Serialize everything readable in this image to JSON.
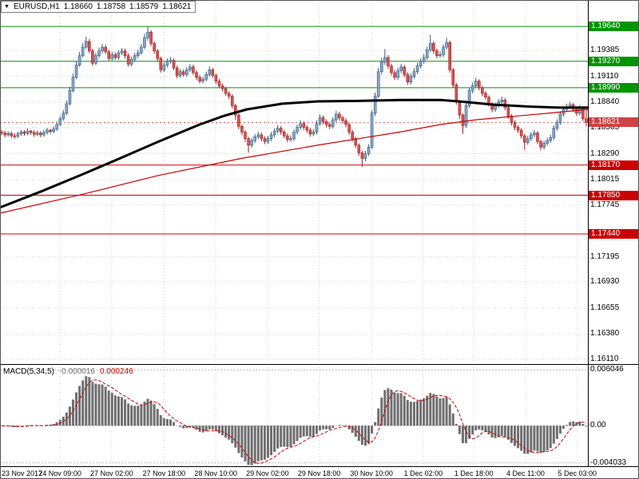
{
  "title": {
    "symbol_period": "EURUSD,H1",
    "open": "1.18660",
    "high": "1.18758",
    "low": "1.18579",
    "close": "1.18621"
  },
  "colors": {
    "bull_fill": "#89a8c6",
    "bull_border": "#355a7d",
    "bear_fill": "#d95252",
    "bear_border": "#9e2424",
    "ma_slow": "#000000",
    "ma_fast": "#cc0000",
    "resistance": "#009500",
    "support": "#cc0000",
    "current_price_line": "#e06666",
    "current_price_box": "#cc4444",
    "grid": "#cdcdcd",
    "histogram": "#6f6f6f",
    "signal": "#cc0000",
    "axis_text": "#000000",
    "separator": "#000000"
  },
  "price_axis": {
    "ticks": [
      "1.19385",
      "1.19110",
      "1.18840",
      "1.18565",
      "1.18290",
      "1.18015",
      "1.17745",
      "1.17195",
      "1.16930",
      "1.16655",
      "1.16380",
      "1.16110"
    ]
  },
  "time_axis": {
    "labels": [
      {
        "text": "23 Nov 2017",
        "pos": 0.003,
        "align": "left"
      },
      {
        "text": "24 Nov 09:00",
        "pos": 0.102
      },
      {
        "text": "27 Nov 02:00",
        "pos": 0.19
      },
      {
        "text": "27 Nov 18:00",
        "pos": 0.279
      },
      {
        "text": "28 Nov 10:00",
        "pos": 0.367
      },
      {
        "text": "29 Nov 02:00",
        "pos": 0.455
      },
      {
        "text": "29 Nov 18:00",
        "pos": 0.543
      },
      {
        "text": "30 Nov 10:00",
        "pos": 0.632
      },
      {
        "text": "1 Dec 02:00",
        "pos": 0.72
      },
      {
        "text": "1 Dec 18:00",
        "pos": 0.806
      },
      {
        "text": "4 Dec 11:00",
        "pos": 0.894
      },
      {
        "text": "5 Dec 03:00",
        "pos": 0.982
      }
    ]
  },
  "chart_data": {
    "type": "candlestick",
    "title": "EURUSD,H1",
    "price_range": {
      "min": 1.1606,
      "max": 1.1992
    },
    "levels": {
      "resistance": [
        {
          "price": 1.1964,
          "label": "1.19640"
        },
        {
          "price": 1.1927,
          "label": "1.19270"
        },
        {
          "price": 1.1899,
          "label": "1.18990"
        }
      ],
      "support": [
        {
          "price": 1.1817,
          "label": "1.18170"
        },
        {
          "price": 1.1785,
          "label": "1.17850"
        },
        {
          "price": 1.1744,
          "label": "1.17440"
        }
      ]
    },
    "current_price": {
      "price": 1.18621,
      "label": "1.18621"
    },
    "candles": [
      [
        1.1852,
        1.18545,
        1.18485,
        1.1851
      ],
      [
        1.1851,
        1.18535,
        1.18465,
        1.1849
      ],
      [
        1.1849,
        1.1853,
        1.1847,
        1.18505
      ],
      [
        1.18505,
        1.18525,
        1.18455,
        1.1848
      ],
      [
        1.1848,
        1.1851,
        1.1845,
        1.18475
      ],
      [
        1.18475,
        1.18525,
        1.18455,
        1.185
      ],
      [
        1.185,
        1.18545,
        1.1848,
        1.1852
      ],
      [
        1.1852,
        1.1854,
        1.1848,
        1.18505
      ],
      [
        1.18505,
        1.1856,
        1.18485,
        1.1853
      ],
      [
        1.1853,
        1.18545,
        1.1849,
        1.18515
      ],
      [
        1.18515,
        1.1854,
        1.1847,
        1.18495
      ],
      [
        1.18495,
        1.18535,
        1.18475,
        1.1851
      ],
      [
        1.1851,
        1.1853,
        1.18465,
        1.1849
      ],
      [
        1.1849,
        1.18545,
        1.1847,
        1.18515
      ],
      [
        1.18515,
        1.18565,
        1.18495,
        1.1854
      ],
      [
        1.1854,
        1.18555,
        1.185,
        1.18525
      ],
      [
        1.18525,
        1.1858,
        1.18505,
        1.1855
      ],
      [
        1.1855,
        1.1863,
        1.1853,
        1.186
      ],
      [
        1.186,
        1.1869,
        1.1858,
        1.1866
      ],
      [
        1.1866,
        1.18755,
        1.1864,
        1.1872
      ],
      [
        1.1872,
        1.18855,
        1.187,
        1.1882
      ],
      [
        1.1882,
        1.19,
        1.188,
        1.1896
      ],
      [
        1.1896,
        1.1914,
        1.1894,
        1.191
      ],
      [
        1.191,
        1.1927,
        1.1908,
        1.1923
      ],
      [
        1.1923,
        1.1937,
        1.1921,
        1.1933
      ],
      [
        1.1933,
        1.19465,
        1.1931,
        1.1942
      ],
      [
        1.1942,
        1.1953,
        1.194,
        1.1948
      ],
      [
        1.1948,
        1.19505,
        1.19355,
        1.1938
      ],
      [
        1.1938,
        1.19405,
        1.1922,
        1.1925
      ],
      [
        1.1925,
        1.1936,
        1.1923,
        1.1933
      ],
      [
        1.1933,
        1.19415,
        1.19305,
        1.1938
      ],
      [
        1.1938,
        1.19455,
        1.19355,
        1.1942
      ],
      [
        1.1942,
        1.19445,
        1.19345,
        1.1937
      ],
      [
        1.1937,
        1.19395,
        1.19275,
        1.193
      ],
      [
        1.193,
        1.1937,
        1.19275,
        1.1934
      ],
      [
        1.1934,
        1.19365,
        1.19285,
        1.1931
      ],
      [
        1.1931,
        1.1939,
        1.19285,
        1.1936
      ],
      [
        1.1936,
        1.1941,
        1.19335,
        1.1938
      ],
      [
        1.1938,
        1.19405,
        1.193,
        1.1933
      ],
      [
        1.1933,
        1.19355,
        1.19215,
        1.1924
      ],
      [
        1.1924,
        1.1932,
        1.19215,
        1.1929
      ],
      [
        1.1929,
        1.1936,
        1.19265,
        1.1933
      ],
      [
        1.1933,
        1.19395,
        1.19305,
        1.1936
      ],
      [
        1.1936,
        1.19455,
        1.1934,
        1.1942
      ],
      [
        1.1942,
        1.1956,
        1.194,
        1.1952
      ],
      [
        1.1952,
        1.1964,
        1.1949,
        1.1958
      ],
      [
        1.1958,
        1.196,
        1.1943,
        1.1946
      ],
      [
        1.1946,
        1.1948,
        1.1935,
        1.1938
      ],
      [
        1.1938,
        1.194,
        1.1927,
        1.193
      ],
      [
        1.193,
        1.1932,
        1.1915,
        1.1918
      ],
      [
        1.1918,
        1.1926,
        1.19155,
        1.1923
      ],
      [
        1.1923,
        1.193,
        1.19205,
        1.1927
      ],
      [
        1.1927,
        1.19315,
        1.19245,
        1.1928
      ],
      [
        1.1928,
        1.193,
        1.19175,
        1.192
      ],
      [
        1.192,
        1.19225,
        1.1909,
        1.1912
      ],
      [
        1.1912,
        1.1919,
        1.19095,
        1.1916
      ],
      [
        1.1916,
        1.19185,
        1.19105,
        1.1913
      ],
      [
        1.1913,
        1.1921,
        1.19105,
        1.1918
      ],
      [
        1.1918,
        1.1924,
        1.19155,
        1.1921
      ],
      [
        1.1921,
        1.19235,
        1.19125,
        1.1915
      ],
      [
        1.1915,
        1.19175,
        1.1907,
        1.191
      ],
      [
        1.191,
        1.19125,
        1.19035,
        1.1906
      ],
      [
        1.1906,
        1.1911,
        1.19035,
        1.1908
      ],
      [
        1.1908,
        1.1916,
        1.19055,
        1.1913
      ],
      [
        1.1913,
        1.19215,
        1.19105,
        1.1918
      ],
      [
        1.1918,
        1.192,
        1.19095,
        1.1912
      ],
      [
        1.1912,
        1.1914,
        1.1903,
        1.1906
      ],
      [
        1.1906,
        1.19085,
        1.18985,
        1.1901
      ],
      [
        1.1901,
        1.19035,
        1.1895,
        1.1898
      ],
      [
        1.1898,
        1.19,
        1.18905,
        1.1893
      ],
      [
        1.1893,
        1.18955,
        1.1887,
        1.189
      ],
      [
        1.189,
        1.1892,
        1.1877,
        1.188
      ],
      [
        1.188,
        1.1882,
        1.1865,
        1.187
      ],
      [
        1.187,
        1.1872,
        1.1855,
        1.1858
      ],
      [
        1.1858,
        1.186,
        1.18485,
        1.1852
      ],
      [
        1.1852,
        1.1854,
        1.18415,
        1.1845
      ],
      [
        1.1845,
        1.1847,
        1.183,
        1.1838
      ],
      [
        1.1838,
        1.1846,
        1.18355,
        1.1843
      ],
      [
        1.1843,
        1.185,
        1.18405,
        1.1847
      ],
      [
        1.1847,
        1.18525,
        1.18445,
        1.1849
      ],
      [
        1.1849,
        1.18515,
        1.1842,
        1.1845
      ],
      [
        1.1845,
        1.18475,
        1.1839,
        1.1842
      ],
      [
        1.1842,
        1.1848,
        1.18395,
        1.1845
      ],
      [
        1.1845,
        1.1852,
        1.18425,
        1.1849
      ],
      [
        1.1849,
        1.1856,
        1.18465,
        1.1853
      ],
      [
        1.1853,
        1.18595,
        1.18505,
        1.1856
      ],
      [
        1.1856,
        1.18585,
        1.1849,
        1.1852
      ],
      [
        1.1852,
        1.18545,
        1.18455,
        1.1848
      ],
      [
        1.1848,
        1.18505,
        1.1841,
        1.1844
      ],
      [
        1.1844,
        1.18485,
        1.18415,
        1.1845
      ],
      [
        1.1845,
        1.1855,
        1.18425,
        1.1852
      ],
      [
        1.1852,
        1.186,
        1.18495,
        1.1857
      ],
      [
        1.1857,
        1.18645,
        1.18545,
        1.1861
      ],
      [
        1.1861,
        1.18635,
        1.1854,
        1.1857
      ],
      [
        1.1857,
        1.18595,
        1.1851,
        1.1854
      ],
      [
        1.1854,
        1.18565,
        1.1847,
        1.185
      ],
      [
        1.185,
        1.1855,
        1.18475,
        1.1852
      ],
      [
        1.1852,
        1.18645,
        1.18495,
        1.1861
      ],
      [
        1.1861,
        1.18705,
        1.18585,
        1.1867
      ],
      [
        1.1867,
        1.18695,
        1.186,
        1.1863
      ],
      [
        1.1863,
        1.18655,
        1.1857,
        1.186
      ],
      [
        1.186,
        1.18625,
        1.1855,
        1.1858
      ],
      [
        1.1858,
        1.1868,
        1.18555,
        1.1865
      ],
      [
        1.1865,
        1.18745,
        1.18625,
        1.1871
      ],
      [
        1.1871,
        1.18735,
        1.1864,
        1.1867
      ],
      [
        1.1867,
        1.18695,
        1.1861,
        1.1864
      ],
      [
        1.1864,
        1.18665,
        1.1857,
        1.186
      ],
      [
        1.186,
        1.1862,
        1.1849,
        1.1852
      ],
      [
        1.1852,
        1.1854,
        1.1842,
        1.1845
      ],
      [
        1.1845,
        1.1847,
        1.1835,
        1.1838
      ],
      [
        1.1838,
        1.184,
        1.1827,
        1.183
      ],
      [
        1.183,
        1.1832,
        1.1815,
        1.1824
      ],
      [
        1.1824,
        1.1832,
        1.1821,
        1.1829
      ],
      [
        1.1829,
        1.1839,
        1.18265,
        1.1836
      ],
      [
        1.1836,
        1.1875,
        1.1834,
        1.1872
      ],
      [
        1.1872,
        1.1894,
        1.1869,
        1.189
      ],
      [
        1.189,
        1.192,
        1.1888,
        1.1916
      ],
      [
        1.1916,
        1.1931,
        1.1913,
        1.1926
      ],
      [
        1.1926,
        1.194,
        1.1923,
        1.1931
      ],
      [
        1.1931,
        1.19335,
        1.1919,
        1.1922
      ],
      [
        1.1922,
        1.19245,
        1.1912,
        1.1915
      ],
      [
        1.1915,
        1.19175,
        1.1907,
        1.191
      ],
      [
        1.191,
        1.192,
        1.19075,
        1.1917
      ],
      [
        1.1917,
        1.19245,
        1.19145,
        1.1921
      ],
      [
        1.1921,
        1.1923,
        1.191,
        1.1913
      ],
      [
        1.1913,
        1.19155,
        1.1902,
        1.1905
      ],
      [
        1.1905,
        1.1914,
        1.19025,
        1.1911
      ],
      [
        1.1911,
        1.19195,
        1.19085,
        1.1916
      ],
      [
        1.1916,
        1.19255,
        1.19135,
        1.1922
      ],
      [
        1.1922,
        1.193,
        1.19195,
        1.1927
      ],
      [
        1.1927,
        1.19345,
        1.19245,
        1.1931
      ],
      [
        1.1931,
        1.19425,
        1.19285,
        1.1939
      ],
      [
        1.1939,
        1.1955,
        1.19365,
        1.1946
      ],
      [
        1.1946,
        1.19485,
        1.1935,
        1.1938
      ],
      [
        1.1938,
        1.19405,
        1.193,
        1.1933
      ],
      [
        1.1933,
        1.19375,
        1.19305,
        1.1934
      ],
      [
        1.1934,
        1.1945,
        1.19315,
        1.1942
      ],
      [
        1.1942,
        1.1952,
        1.19395,
        1.1947
      ],
      [
        1.1947,
        1.1949,
        1.1915,
        1.1918
      ],
      [
        1.1918,
        1.192,
        1.1899,
        1.1902
      ],
      [
        1.1902,
        1.1904,
        1.1881,
        1.1884
      ],
      [
        1.1884,
        1.1886,
        1.1866,
        1.187
      ],
      [
        1.187,
        1.1872,
        1.185,
        1.1859
      ],
      [
        1.1859,
        1.1883,
        1.18565,
        1.188
      ],
      [
        1.188,
        1.1899,
        1.18775,
        1.1896
      ],
      [
        1.1896,
        1.19045,
        1.1893,
        1.1901
      ],
      [
        1.1901,
        1.19095,
        1.18985,
        1.1906
      ],
      [
        1.1906,
        1.1908,
        1.1896,
        1.1899
      ],
      [
        1.1899,
        1.1901,
        1.189,
        1.1893
      ],
      [
        1.1893,
        1.18955,
        1.1886,
        1.1889
      ],
      [
        1.1889,
        1.1891,
        1.1879,
        1.1882
      ],
      [
        1.1882,
        1.1884,
        1.1873,
        1.1876
      ],
      [
        1.1876,
        1.1883,
        1.18735,
        1.188
      ],
      [
        1.188,
        1.1887,
        1.18775,
        1.1884
      ],
      [
        1.1884,
        1.18895,
        1.18815,
        1.1886
      ],
      [
        1.1886,
        1.1888,
        1.1875,
        1.1878
      ],
      [
        1.1878,
        1.188,
        1.1866,
        1.1869
      ],
      [
        1.1869,
        1.1871,
        1.1859,
        1.1862
      ],
      [
        1.1862,
        1.18645,
        1.1854,
        1.1857
      ],
      [
        1.1857,
        1.18595,
        1.1851,
        1.1854
      ],
      [
        1.1854,
        1.1856,
        1.1845,
        1.1848
      ],
      [
        1.1848,
        1.185,
        1.1833,
        1.1841
      ],
      [
        1.1841,
        1.1848,
        1.18385,
        1.1845
      ],
      [
        1.1845,
        1.1852,
        1.18425,
        1.1849
      ],
      [
        1.1849,
        1.18545,
        1.18465,
        1.1851
      ],
      [
        1.1851,
        1.1853,
        1.1839,
        1.1842
      ],
      [
        1.1842,
        1.1844,
        1.1833,
        1.1836
      ],
      [
        1.1836,
        1.1843,
        1.18335,
        1.184
      ],
      [
        1.184,
        1.1846,
        1.18375,
        1.1843
      ],
      [
        1.1843,
        1.1849,
        1.18405,
        1.1846
      ],
      [
        1.1846,
        1.1859,
        1.18435,
        1.1856
      ],
      [
        1.1856,
        1.18655,
        1.18535,
        1.1862
      ],
      [
        1.1862,
        1.1874,
        1.18595,
        1.1871
      ],
      [
        1.1871,
        1.1879,
        1.18685,
        1.1876
      ],
      [
        1.1876,
        1.1882,
        1.18735,
        1.1879
      ],
      [
        1.1879,
        1.1884,
        1.18765,
        1.1881
      ],
      [
        1.1881,
        1.1883,
        1.1873,
        1.1876
      ],
      [
        1.1876,
        1.1878,
        1.1869,
        1.1872
      ],
      [
        1.1872,
        1.18805,
        1.18695,
        1.1877
      ],
      [
        1.1877,
        1.1879,
        1.18635,
        1.1866
      ],
      [
        1.1866,
        1.18758,
        1.18579,
        1.18621
      ]
    ],
    "ma_slow_points": [
      [
        0,
        1.1772
      ],
      [
        0.07,
        1.1789
      ],
      [
        0.14,
        1.1807
      ],
      [
        0.2,
        1.1823
      ],
      [
        0.27,
        1.1842
      ],
      [
        0.34,
        1.186
      ],
      [
        0.38,
        1.1869
      ],
      [
        0.42,
        1.1876
      ],
      [
        0.48,
        1.1882
      ],
      [
        0.54,
        1.18845
      ],
      [
        0.61,
        1.1885
      ],
      [
        0.68,
        1.1886
      ],
      [
        0.75,
        1.1886
      ],
      [
        0.79,
        1.1884
      ],
      [
        0.84,
        1.1881
      ],
      [
        0.9,
        1.1879
      ],
      [
        0.95,
        1.1878
      ],
      [
        1,
        1.1878
      ]
    ],
    "ma_fast_points": [
      [
        0,
        1.1766
      ],
      [
        0.14,
        1.1786
      ],
      [
        0.27,
        1.1806
      ],
      [
        0.41,
        1.1824
      ],
      [
        0.54,
        1.1838
      ],
      [
        0.61,
        1.1845
      ],
      [
        0.68,
        1.1852
      ],
      [
        0.75,
        1.186
      ],
      [
        0.81,
        1.1865
      ],
      [
        0.88,
        1.1869
      ],
      [
        0.95,
        1.1873
      ],
      [
        1,
        1.1876
      ]
    ],
    "macd": {
      "name": "MACD(5,34,5)",
      "fast": 5,
      "slow": 34,
      "signal_period": 5,
      "value": "-0.000016",
      "signal_value": "0.000246",
      "range": {
        "min": -0.0044,
        "max": 0.0066
      },
      "ticks": [
        {
          "v": 0.006046,
          "label": "0.006046"
        },
        {
          "v": 0,
          "label": "0.00"
        },
        {
          "v": -0.004033,
          "label": "-0.004033"
        }
      ]
    }
  }
}
